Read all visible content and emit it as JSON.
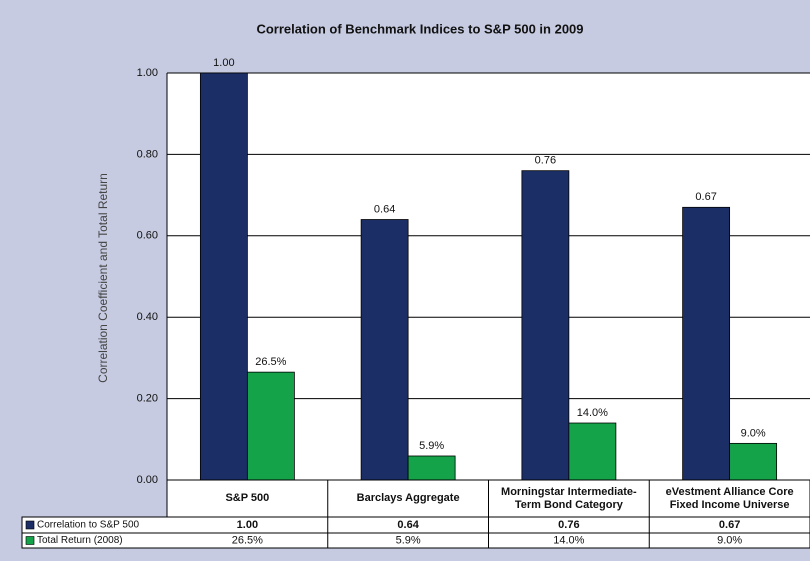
{
  "chart_data": {
    "type": "bar",
    "title": "Correlation of Benchmark Indices to S&P 500 in 2009",
    "y_label": "Correlation Coefficient and Total Return",
    "categories": [
      "S&P 500",
      "Barclays Aggregate",
      "Morningstar Intermediate-Term Bond Category",
      "eVestment Alliance Core Fixed Income Universe"
    ],
    "series": [
      {
        "name": "Correlation to S&P 500",
        "color": "#1b2f66",
        "values": [
          1.0,
          0.64,
          0.76,
          0.67
        ],
        "value_labels": [
          "1.00",
          "0.64",
          "0.76",
          "0.67"
        ]
      },
      {
        "name": "Total Return (2008)",
        "color": "#15a34a",
        "values": [
          0.265,
          0.059,
          0.14,
          0.09
        ],
        "value_labels": [
          "26.5%",
          "5.9%",
          "14.0%",
          "9.0%"
        ]
      }
    ],
    "ylim": [
      0,
      1
    ],
    "yticks": [
      {
        "value": 0,
        "label": "0.00"
      },
      {
        "value": 0.2,
        "label": "0.20"
      },
      {
        "value": 0.4,
        "label": "0.40"
      },
      {
        "value": 0.6,
        "label": "0.60"
      },
      {
        "value": 0.8,
        "label": "0.80"
      },
      {
        "value": 1,
        "label": "1.00"
      }
    ],
    "grid": true
  }
}
